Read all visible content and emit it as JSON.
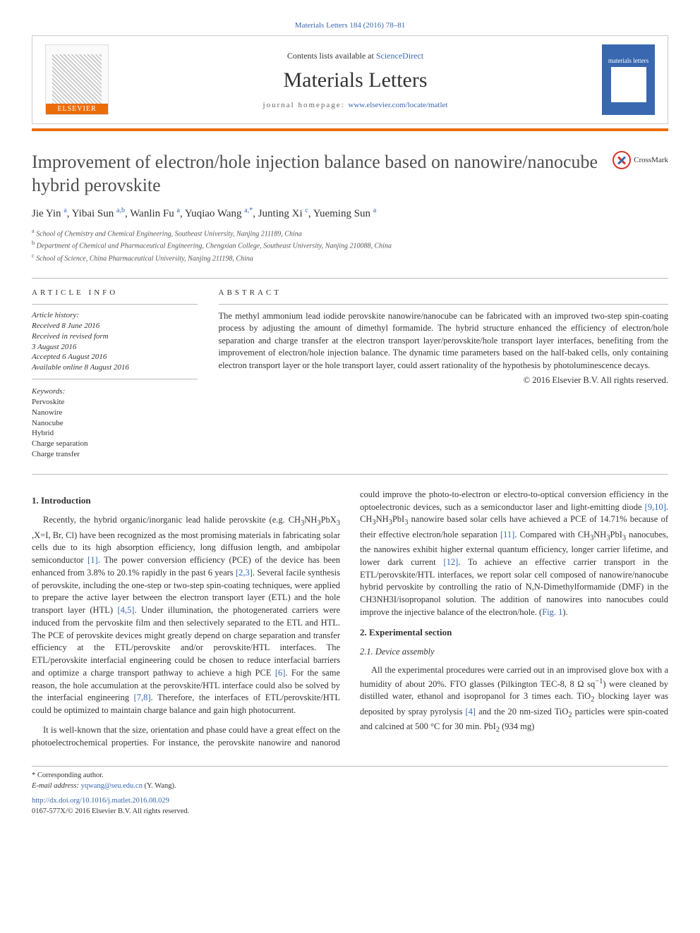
{
  "colors": {
    "link": "#3968b0",
    "accent_orange": "#eb6d0a",
    "text": "#333333",
    "title_gray": "#505050",
    "rule": "#bbbbbb"
  },
  "typography": {
    "body_family": "Georgia, 'Times New Roman', serif",
    "title_size_pt": 26,
    "journal_name_size_pt": 30,
    "body_size_pt": 12.5
  },
  "header": {
    "top_link_text": "Materials Letters 184 (2016) 78–81",
    "contents_prefix": "Contents lists available at ",
    "contents_link": "ScienceDirect",
    "journal_name": "Materials Letters",
    "homepage_prefix": "journal homepage: ",
    "homepage_link": "www.elsevier.com/locate/matlet",
    "publisher": "ELSEVIER",
    "cover_label": "materials letters"
  },
  "crossmark_label": "CrossMark",
  "title": "Improvement of electron/hole injection balance based on nanowire/nanocube hybrid perovskite",
  "authors_html": "Jie Yin <sup>a</sup>, Yibai Sun <sup>a,b</sup>, Wanlin Fu <sup>a</sup>, Yuqiao Wang <sup>a,*</sup>, Junting Xi <sup>c</sup>, Yueming Sun <sup>a</sup>",
  "affiliations": [
    {
      "sup": "a",
      "text": "School of Chemistry and Chemical Engineering, Southeast University, Nanjing 211189, China"
    },
    {
      "sup": "b",
      "text": "Department of Chemical and Pharmaceutical Engineering, Chengxian College, Southeast University, Nanjing 210088, China"
    },
    {
      "sup": "c",
      "text": "School of Science, China Pharmaceutical University, Nanjing 211198, China"
    }
  ],
  "article_info": {
    "head": "ARTICLE INFO",
    "history_label": "Article history:",
    "history": [
      "Received 8 June 2016",
      "Received in revised form",
      "3 August 2016",
      "Accepted 6 August 2016",
      "Available online 8 August 2016"
    ],
    "keywords_label": "Keywords:",
    "keywords": [
      "Pervoskite",
      "Nanowire",
      "Nanocube",
      "Hybrid",
      "Charge separation",
      "Charge transfer"
    ]
  },
  "abstract": {
    "head": "ABSTRACT",
    "text": "The methyl ammonium lead iodide perovskite nanowire/nanocube can be fabricated with an improved two-step spin-coating process by adjusting the amount of dimethyl formamide. The hybrid structure enhanced the efficiency of electron/hole separation and charge transfer at the electron transport layer/perovskite/hole transport layer interfaces, benefiting from the improvement of electron/hole injection balance. The dynamic time parameters based on the half-baked cells, only containing electron transport layer or the hole transport layer, could assert rationality of the hypothesis by photoluminescence decays.",
    "copyright": "© 2016 Elsevier B.V. All rights reserved."
  },
  "sections": {
    "intro_head": "1.  Introduction",
    "intro_p1": "Recently, the hybrid organic/inorganic lead halide perovskite (e.g. CH3NH3PbX3 ,X=I, Br, Cl) have been recognized as the most promising materials in fabricating solar cells due to its high absorption efficiency, long diffusion length, and ambipolar semiconductor [1]. The power conversion efficiency (PCE) of the device has been enhanced from 3.8% to 20.1% rapidly in the past 6 years [2,3]. Several facile synthesis of perovskite, including the one-step or two-step spin-coating techniques, were applied to prepare the active layer between the electron transport layer (ETL) and the hole transport layer (HTL) [4,5]. Under illumination, the photogenerated carriers were induced from the pervoskite film and then selectively separated to the ETL and HTL. The PCE of perovskite devices might greatly depend on charge separation and transfer efficiency at the ETL/perovskite and/or perovskite/HTL interfaces. The ETL/perovskite interfacial engineering could be chosen to reduce interfacial barriers and optimize a charge transport pathway to achieve a high PCE [6]. For the same reason, the hole accumulation at the perovskite/HTL interface could also be solved by the interfacial engineering [7,8]. Therefore, the interfaces of ETL/perovskite/HTL could be optimized to maintain charge balance and gain high photocurrent.",
    "intro_p2": "It is well-known that the size, orientation and phase could have a great effect on the photoelectrochemical properties. For instance, the perovskite nanowire and nanorod could improve the photo-to-electron or electro-to-optical conversion efficiency in the optoelectronic devices, such as a semiconductor laser and light-emitting diode [9,10]. CH3NH3PbI3 nanowire based solar cells have achieved a PCE of 14.71% because of their effective electron/hole separation [11]. Compared with CH3NH3PbI3 nanocubes, the nanowires exhibit higher external quantum efficiency, longer carrier lifetime, and lower dark current [12]. To achieve an effective carrier transport in the ETL/perovskite/HTL interfaces, we report solar cell composed of nanowire/nanocube hybrid pervoskite by controlling the ratio of N,N-Dimethylformamide (DMF) in the CH3NH3I/isopropanol solution. The addition of nanowires into nanocubes could improve the injective balance of the electron/hole. (Fig. 1).",
    "exp_head": "2.  Experimental section",
    "exp_sub": "2.1.  Device assembly",
    "exp_p1": "All the experimental procedures were carried out in an improvised glove box with a humidity of about 20%. FTO glasses (Pilkington TEC-8, 8 Ω sq−1) were cleaned by distilled water, ethanol and isopropanol for 3 times each. TiO2 blocking layer was deposited by spray pyrolysis [4] and the 20 nm-sized TiO2 particles were spin-coated and calcined at 500 °C for 30 min. PbI2 (934 mg)"
  },
  "refs": {
    "r1": "[1]",
    "r23": "[2,3]",
    "r45": "[4,5]",
    "r6": "[6]",
    "r78": "[7,8]",
    "r910": "[9,10]",
    "r11": "[11]",
    "r12": "[12]",
    "r4": "[4]",
    "fig1": "Fig. 1"
  },
  "footer": {
    "corr_label": "* Corresponding author.",
    "email_label": "E-mail address: ",
    "email": "yqwang@seu.edu.cn",
    "email_suffix": " (Y. Wang).",
    "doi": "http://dx.doi.org/10.1016/j.matlet.2016.08.029",
    "issn_line": "0167-577X/© 2016 Elsevier B.V. All rights reserved."
  }
}
